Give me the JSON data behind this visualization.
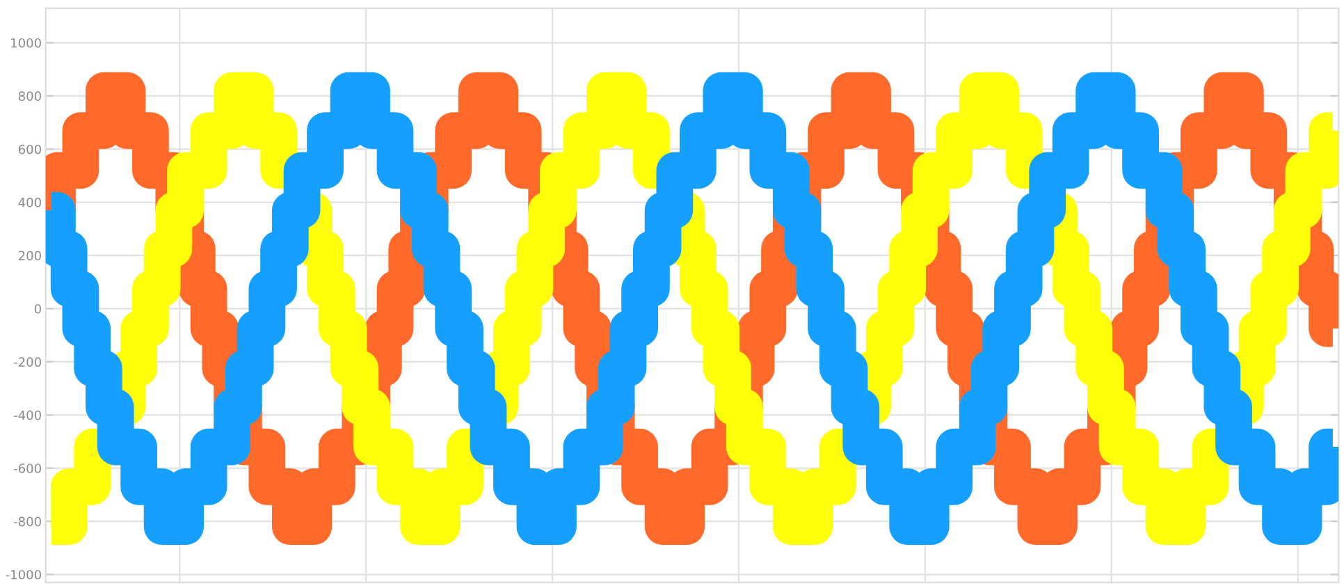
{
  "chart_data": {
    "type": "step",
    "categories": [
      null,
      null,
      null,
      null,
      null,
      null,
      null,
      null,
      null,
      null,
      null,
      null,
      null,
      null,
      null,
      null,
      null,
      null,
      null,
      null,
      null,
      null,
      null,
      null,
      null,
      null,
      null,
      null,
      null,
      null,
      null,
      null,
      null,
      null,
      null,
      null,
      null,
      null,
      null,
      null,
      null,
      null,
      null,
      null,
      null,
      null,
      null,
      null,
      null,
      null,
      null,
      null,
      null,
      null,
      null,
      null,
      null,
      null,
      null,
      null,
      null,
      null,
      null,
      null,
      null,
      null,
      null,
      null,
      null,
      null,
      null,
      null,
      null,
      null,
      null,
      null,
      null,
      null,
      null,
      null,
      null,
      null,
      null,
      null,
      null,
      null,
      null,
      null,
      null,
      null,
      null,
      null,
      null,
      null,
      null,
      null,
      null,
      null,
      null,
      null,
      null,
      null,
      null,
      null,
      null,
      null,
      null,
      null,
      null,
      null,
      null
    ],
    "ylim": [
      -1030,
      1130
    ],
    "yticks": [
      -1000,
      -800,
      -600,
      -400,
      -200,
      0,
      200,
      400,
      600,
      800,
      1000
    ],
    "grid": true,
    "line_style": "solid",
    "series": [
      {
        "color": "#ff6a2b",
        "values": [
          370,
          520,
          520,
          670,
          670,
          820,
          820,
          670,
          670,
          520,
          520,
          370,
          225,
          75,
          -75,
          -225,
          -370,
          -520,
          -520,
          -670,
          -670,
          -820,
          -820,
          -670,
          -670,
          -520,
          -520,
          -370,
          -225,
          -75,
          75,
          225,
          370,
          520,
          520,
          670,
          670,
          820,
          820,
          670,
          670,
          520,
          520,
          370,
          225,
          75,
          -75,
          -225,
          -370,
          -520,
          -520,
          -670,
          -670,
          -820,
          -820,
          -670,
          -670,
          -520,
          -520,
          -370,
          -225,
          -75,
          75,
          225,
          370,
          520,
          520,
          670,
          670,
          820,
          820,
          670,
          670,
          520,
          520,
          370,
          225,
          75,
          -75,
          -225,
          -370,
          -520,
          -520,
          -670,
          -670,
          -820,
          -820,
          -670,
          -670,
          -520,
          -520,
          -370,
          -225,
          -75,
          75,
          225,
          370,
          520,
          520,
          670,
          670,
          820,
          820,
          670,
          670,
          520,
          520,
          370,
          225,
          75,
          -75
        ]
      },
      {
        "color": "#ffff0a",
        "values": [
          -820,
          -820,
          -670,
          -670,
          -520,
          -520,
          -370,
          -225,
          -75,
          75,
          225,
          370,
          520,
          520,
          670,
          670,
          820,
          820,
          670,
          670,
          520,
          520,
          370,
          225,
          75,
          -75,
          -225,
          -370,
          -520,
          -520,
          -670,
          -670,
          -820,
          -820,
          -670,
          -670,
          -520,
          -520,
          -370,
          -225,
          -75,
          75,
          225,
          370,
          520,
          520,
          670,
          670,
          820,
          820,
          670,
          670,
          520,
          520,
          370,
          225,
          75,
          -75,
          -225,
          -370,
          -520,
          -520,
          -670,
          -670,
          -820,
          -820,
          -670,
          -670,
          -520,
          -520,
          -370,
          -225,
          -75,
          75,
          225,
          370,
          520,
          520,
          670,
          670,
          820,
          820,
          670,
          670,
          520,
          520,
          370,
          225,
          75,
          -75,
          -225,
          -370,
          -520,
          -520,
          -670,
          -670,
          -820,
          -820,
          -670,
          -670,
          -520,
          -520,
          -370,
          -225,
          -75,
          75,
          225,
          370,
          520,
          520,
          670
        ]
      },
      {
        "color": "#15a0ff",
        "values": [
          370,
          225,
          75,
          -75,
          -225,
          -370,
          -520,
          -520,
          -670,
          -670,
          -820,
          -820,
          -670,
          -670,
          -520,
          -520,
          -370,
          -225,
          -75,
          75,
          225,
          370,
          520,
          520,
          670,
          670,
          820,
          820,
          670,
          670,
          520,
          520,
          370,
          225,
          75,
          -75,
          -225,
          -370,
          -520,
          -520,
          -670,
          -670,
          -820,
          -820,
          -670,
          -670,
          -520,
          -520,
          -370,
          -225,
          -75,
          75,
          225,
          370,
          520,
          520,
          670,
          670,
          820,
          820,
          670,
          670,
          520,
          520,
          370,
          225,
          75,
          -75,
          -225,
          -370,
          -520,
          -520,
          -670,
          -670,
          -820,
          -820,
          -670,
          -670,
          -520,
          -520,
          -370,
          -225,
          -75,
          75,
          225,
          370,
          520,
          520,
          670,
          670,
          820,
          820,
          670,
          670,
          520,
          520,
          370,
          225,
          75,
          -75,
          -225,
          -370,
          -520,
          -520,
          -670,
          -670,
          -820,
          -820,
          -670,
          -670,
          -520
        ]
      }
    ]
  }
}
